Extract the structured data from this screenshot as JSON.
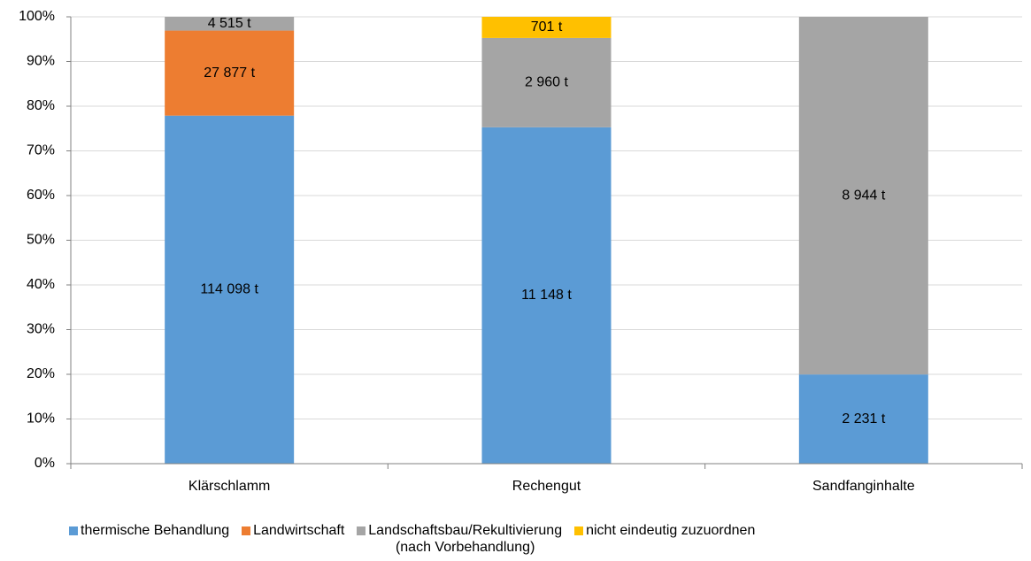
{
  "chart_data": {
    "type": "bar",
    "stacking": "percent",
    "categories": [
      "Klärschlamm",
      "Rechengut",
      "Sandfanginhalte"
    ],
    "series": [
      {
        "name": "thermische Behandlung",
        "color": "#5b9bd5",
        "values": [
          114098,
          11148,
          2231
        ],
        "value_labels": [
          "114 098 t",
          "11 148 t",
          "2 231 t"
        ]
      },
      {
        "name": "Landwirtschaft",
        "color": "#ed7d31",
        "values": [
          27877,
          null,
          null
        ],
        "value_labels": [
          "27 877 t",
          null,
          null
        ]
      },
      {
        "name": "Landschaftsbau/Rekultivierung\n(nach Vorbehandlung)",
        "color": "#a5a5a5",
        "values": [
          4515,
          2960,
          8944
        ],
        "value_labels": [
          "4 515 t",
          "2 960 t",
          "8 944 t"
        ]
      },
      {
        "name": "nicht eindeutig zuzuordnen",
        "color": "#ffc000",
        "values": [
          null,
          701,
          null
        ],
        "value_labels": [
          null,
          "701 t",
          null
        ]
      }
    ],
    "ylim": [
      0,
      100
    ],
    "yticks": [
      {
        "value": 0,
        "label": "0%"
      },
      {
        "value": 10,
        "label": "10%"
      },
      {
        "value": 20,
        "label": "20%"
      },
      {
        "value": 30,
        "label": "30%"
      },
      {
        "value": 40,
        "label": "40%"
      },
      {
        "value": 50,
        "label": "50%"
      },
      {
        "value": 60,
        "label": "60%"
      },
      {
        "value": 70,
        "label": "70%"
      },
      {
        "value": 80,
        "label": "80%"
      },
      {
        "value": 90,
        "label": "90%"
      },
      {
        "value": 100,
        "label": "100%"
      }
    ],
    "grid": true,
    "legend": "bottom"
  }
}
